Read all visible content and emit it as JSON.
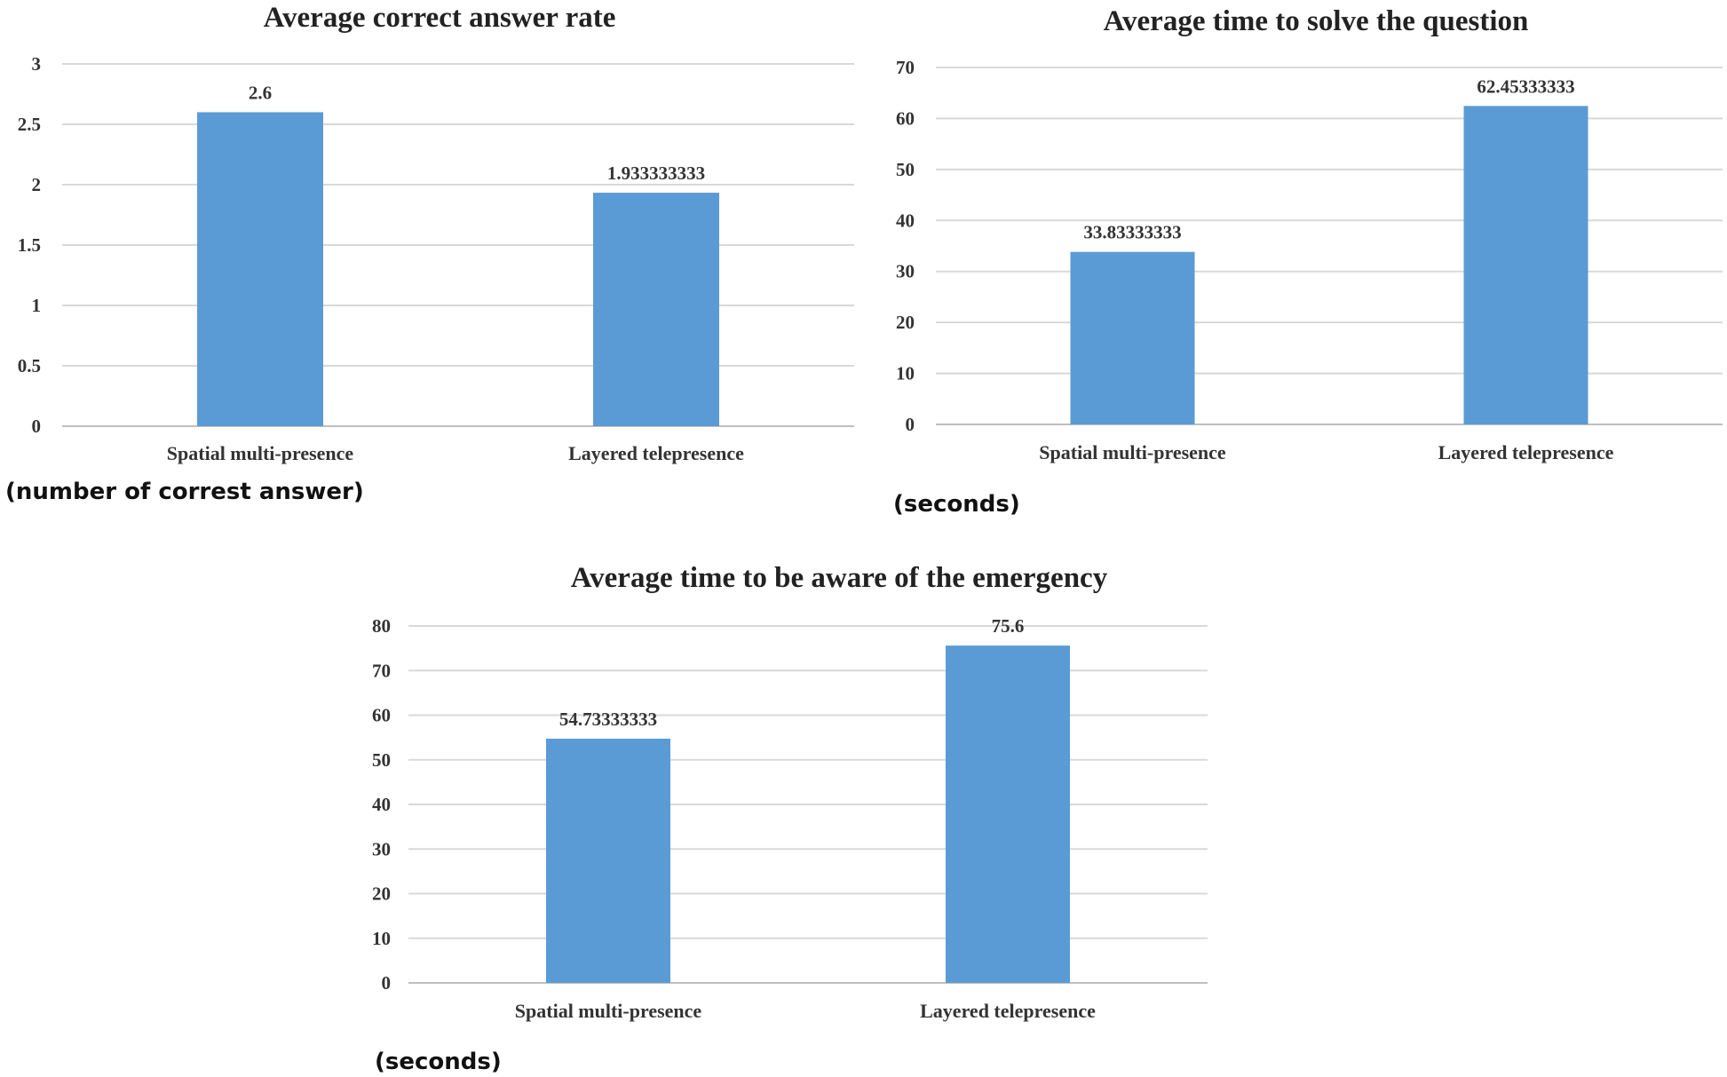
{
  "chart_data": [
    {
      "type": "bar",
      "title": "Average correct answer rate",
      "categories": [
        "Spatial multi-presence",
        "Layered telepresence"
      ],
      "values": [
        2.6,
        1.933333333
      ],
      "value_labels": [
        "2.6",
        "1.933333333"
      ],
      "ylim": [
        0,
        3
      ],
      "yticks": [
        "0",
        "0.5",
        "1",
        "1.5",
        "2",
        "2.5",
        "3"
      ],
      "ylabel": "(number of correst answer)",
      "grid": true,
      "bar_color": "#5b9bd5"
    },
    {
      "type": "bar",
      "title": "Average time to solve the question",
      "categories": [
        "Spatial multi-presence",
        "Layered telepresence"
      ],
      "values": [
        33.83333333,
        62.45333333
      ],
      "value_labels": [
        "33.83333333",
        "62.45333333"
      ],
      "ylim": [
        0,
        70
      ],
      "yticks": [
        "0",
        "10",
        "20",
        "30",
        "40",
        "50",
        "60",
        "70"
      ],
      "ylabel": "(seconds)",
      "grid": true,
      "bar_color": "#5b9bd5"
    },
    {
      "type": "bar",
      "title": "Average time to be aware of the emergency",
      "categories": [
        "Spatial multi-presence",
        "Layered telepresence"
      ],
      "values": [
        54.73333333,
        75.6
      ],
      "value_labels": [
        "54.73333333",
        "75.6"
      ],
      "ylim": [
        0,
        80
      ],
      "yticks": [
        "0",
        "10",
        "20",
        "30",
        "40",
        "50",
        "60",
        "70",
        "80"
      ],
      "ylabel": "(seconds)",
      "grid": true,
      "bar_color": "#5b9bd5"
    }
  ]
}
